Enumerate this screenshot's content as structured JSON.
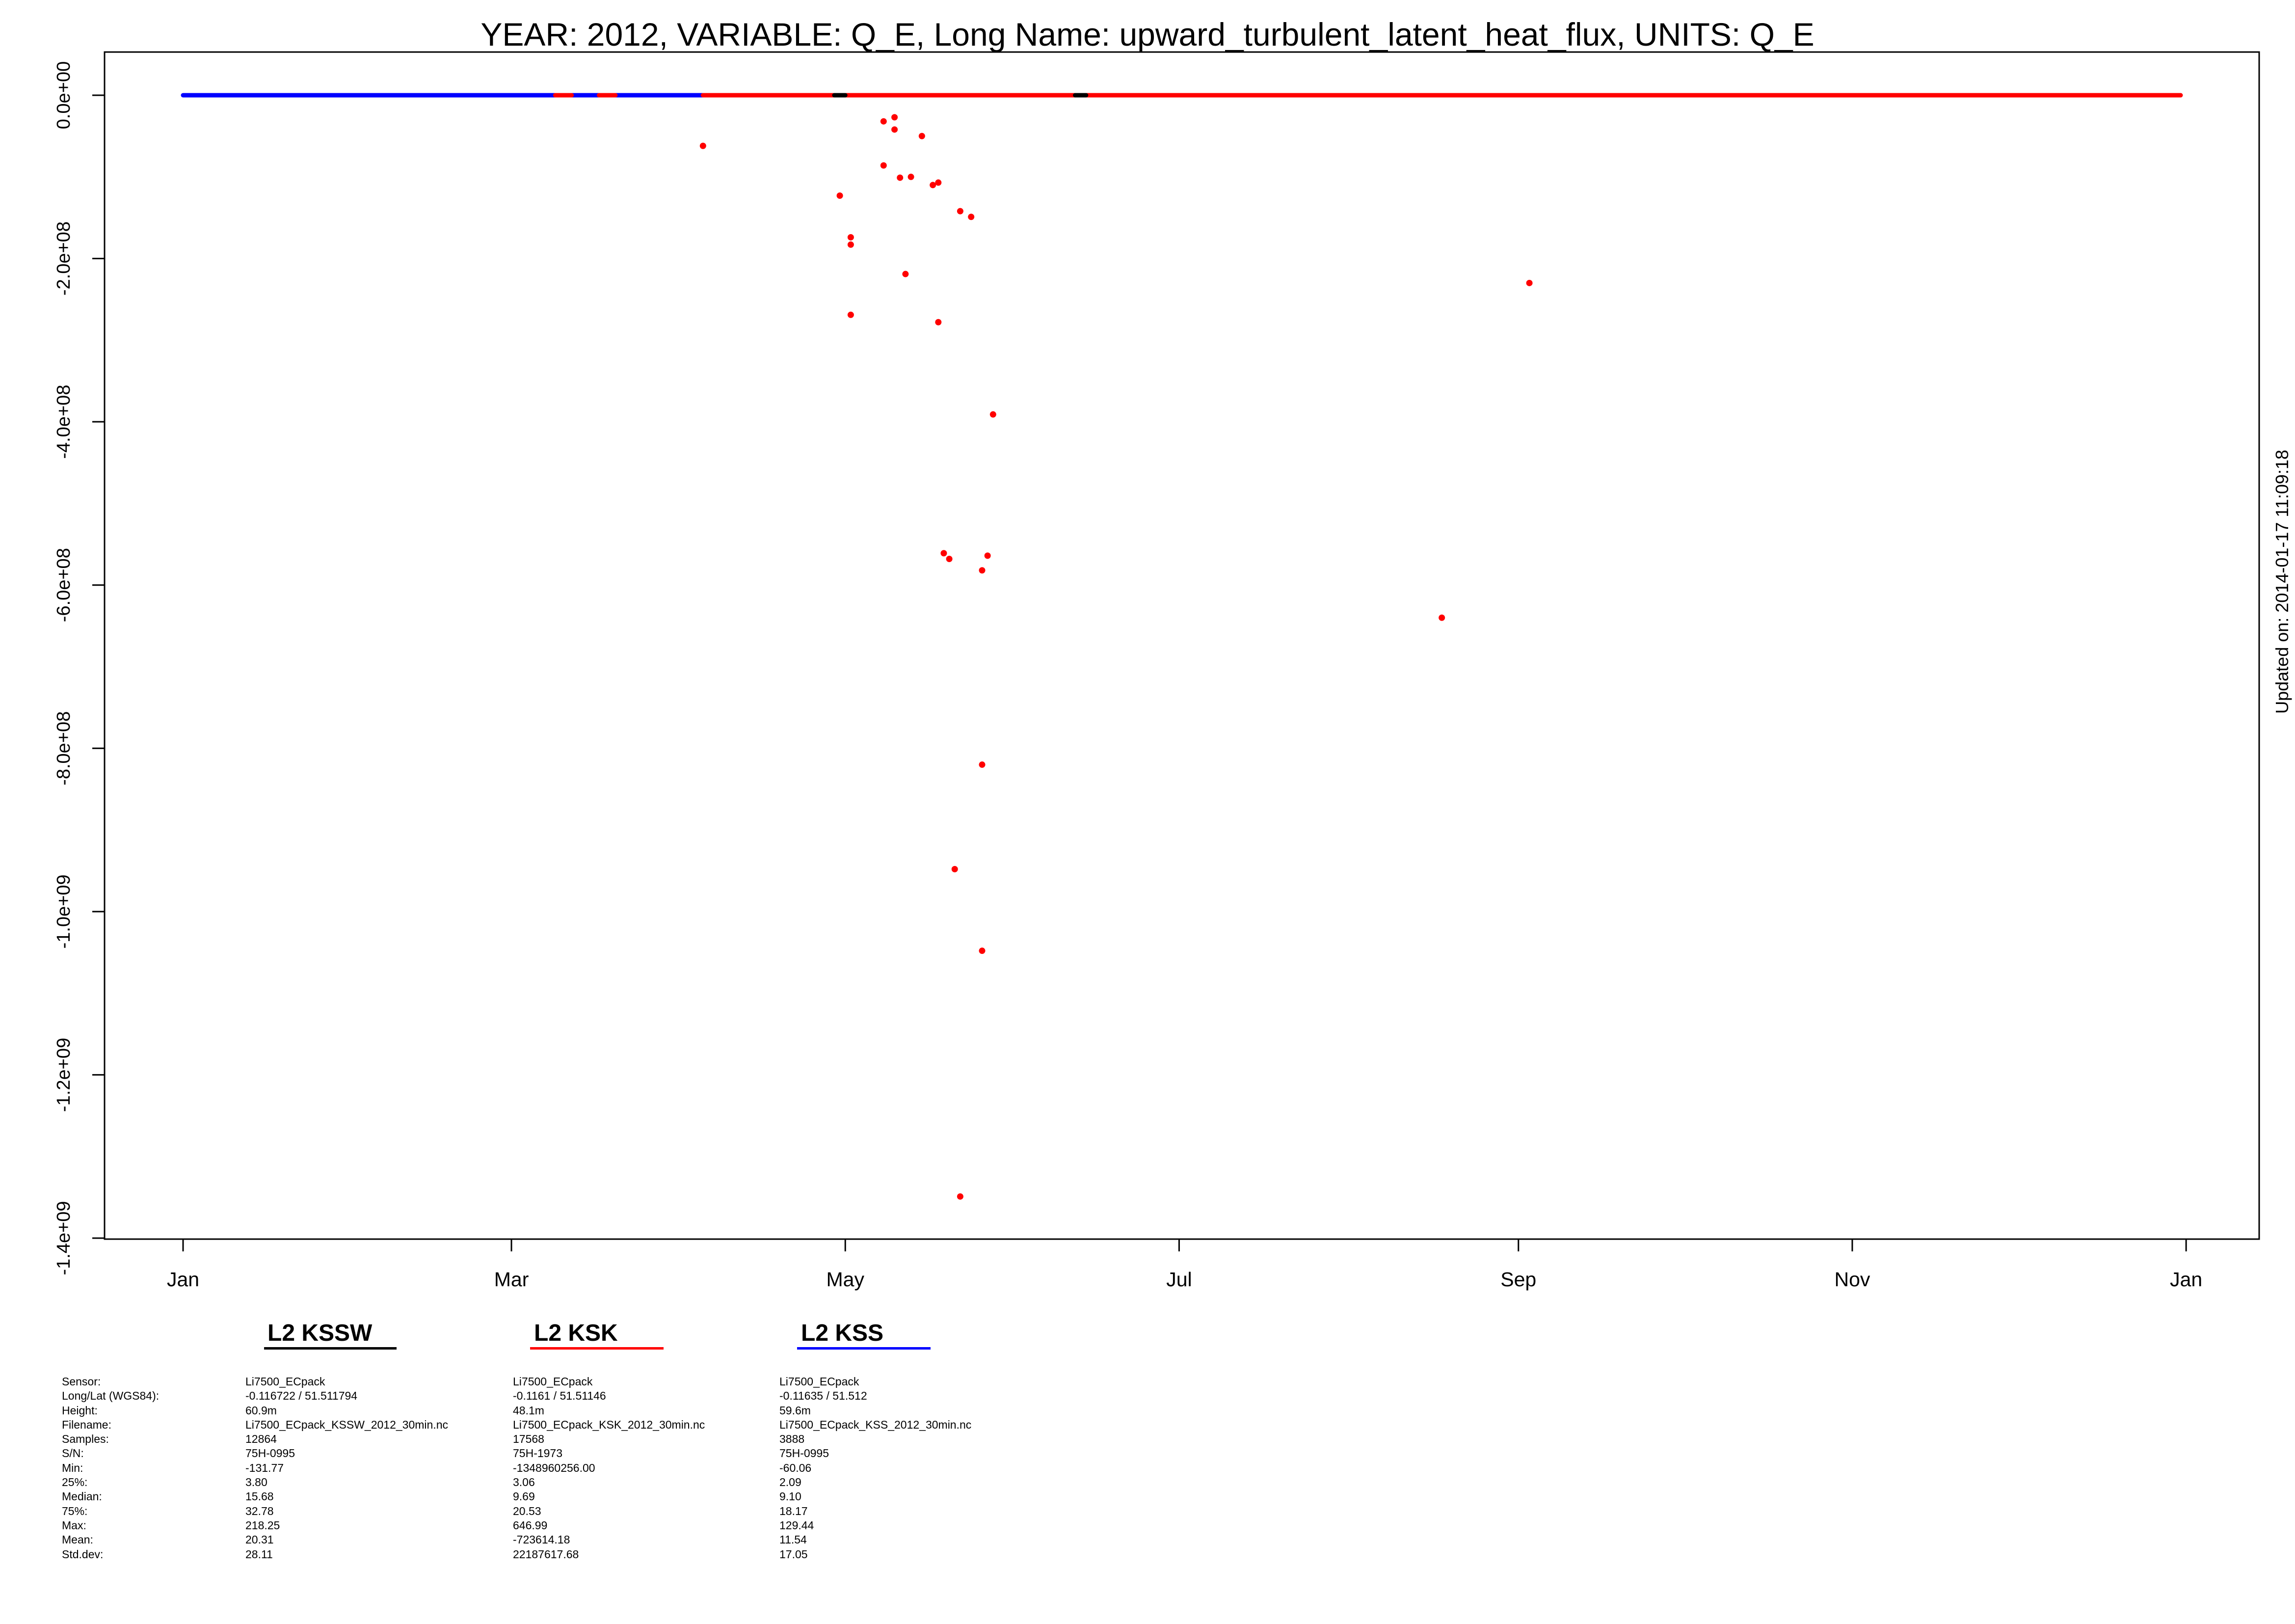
{
  "chart_data": {
    "type": "scatter",
    "title": "YEAR: 2012, VARIABLE: Q_E, Long Name: upward_turbulent_latent_heat_flux, UNITS: Q_E",
    "updated": "Updated on: 2014-01-17 11:09:18",
    "xlabel": "",
    "ylabel": "",
    "x_unit": "days since 2012-01-01",
    "xlim": [
      "2012-01-01",
      "2012-12-31"
    ],
    "ylim": [
      -1400000000,
      0
    ],
    "x_ticks": [
      {
        "date": "2012-01-01",
        "label": "Jan"
      },
      {
        "date": "2012-03-01",
        "label": "Mar"
      },
      {
        "date": "2012-05-01",
        "label": "May"
      },
      {
        "date": "2012-07-01",
        "label": "Jul"
      },
      {
        "date": "2012-09-01",
        "label": "Sep"
      },
      {
        "date": "2012-11-01",
        "label": "Nov"
      },
      {
        "date": "2013-01-01",
        "label": "Jan"
      }
    ],
    "y_ticks": [
      {
        "value": 0,
        "label": "0.0e+00"
      },
      {
        "value": -200000000,
        "label": "-2.0e+08"
      },
      {
        "value": -400000000,
        "label": "-4.0e+08"
      },
      {
        "value": -600000000,
        "label": "-6.0e+08"
      },
      {
        "value": -800000000,
        "label": "-8.0e+08"
      },
      {
        "value": -1000000000,
        "label": "-1.0e+09"
      },
      {
        "value": -1200000000,
        "label": "-1.2e+09"
      },
      {
        "value": -1400000000,
        "label": "-1.4e+09"
      }
    ],
    "grid": false,
    "series": [
      {
        "name": "L2 KSSW",
        "color": "#000000",
        "near_zero_spans": [
          [
            "2012-04-29",
            "2012-05-01"
          ],
          [
            "2012-06-12",
            "2012-06-14"
          ]
        ],
        "points": []
      },
      {
        "name": "L2 KSK",
        "color": "#ff0000",
        "near_zero_spans": [
          [
            "2012-03-09",
            "2012-03-12"
          ],
          [
            "2012-03-17",
            "2012-03-20"
          ],
          [
            "2012-04-05",
            "2012-04-29"
          ],
          [
            "2012-05-01",
            "2012-06-12"
          ],
          [
            "2012-06-14",
            "2012-12-31"
          ]
        ],
        "points": [
          {
            "x": "2012-04-05",
            "y": -62000000
          },
          {
            "x": "2012-05-08",
            "y": -32000000
          },
          {
            "x": "2012-05-10",
            "y": -27000000
          },
          {
            "x": "2012-05-10",
            "y": -42000000
          },
          {
            "x": "2012-05-08",
            "y": -86000000
          },
          {
            "x": "2012-05-11",
            "y": -101000000
          },
          {
            "x": "2012-05-15",
            "y": -50000000
          },
          {
            "x": "2012-05-13",
            "y": -100000000
          },
          {
            "x": "2012-05-17",
            "y": -110000000
          },
          {
            "x": "2012-05-18",
            "y": -107000000
          },
          {
            "x": "2012-04-30",
            "y": -123000000
          },
          {
            "x": "2012-05-02",
            "y": -174000000
          },
          {
            "x": "2012-05-02",
            "y": -183000000
          },
          {
            "x": "2012-05-12",
            "y": -219000000
          },
          {
            "x": "2012-05-02",
            "y": -269000000
          },
          {
            "x": "2012-05-22",
            "y": -142000000
          },
          {
            "x": "2012-05-24",
            "y": -149000000
          },
          {
            "x": "2012-05-18",
            "y": -278000000
          },
          {
            "x": "2012-05-28",
            "y": -391000000
          },
          {
            "x": "2012-05-19",
            "y": -561000000
          },
          {
            "x": "2012-05-20",
            "y": -568000000
          },
          {
            "x": "2012-05-27",
            "y": -564000000
          },
          {
            "x": "2012-05-26",
            "y": -582000000
          },
          {
            "x": "2012-05-26",
            "y": -820000000
          },
          {
            "x": "2012-05-21",
            "y": -948000000
          },
          {
            "x": "2012-05-26",
            "y": -1048000000
          },
          {
            "x": "2012-05-22",
            "y": -1349000000
          },
          {
            "x": "2012-08-18",
            "y": -640000000
          },
          {
            "x": "2012-09-03",
            "y": -230000000
          }
        ]
      },
      {
        "name": "L2 KSS",
        "color": "#0000ff",
        "near_zero_spans": [
          [
            "2012-01-01",
            "2012-03-09"
          ],
          [
            "2012-03-12",
            "2012-03-17"
          ],
          [
            "2012-03-20",
            "2012-04-05"
          ]
        ],
        "points": []
      }
    ],
    "legend": {
      "placement": "bottom",
      "items": [
        {
          "name": "L2 KSSW",
          "color": "#000000"
        },
        {
          "name": "L2 KSK",
          "color": "#ff0000"
        },
        {
          "name": "L2 KSS",
          "color": "#0000ff"
        }
      ]
    }
  },
  "info_table": {
    "row_labels": [
      "Sensor:",
      "Long/Lat (WGS84):",
      "Height:",
      "Filename:",
      "Samples:",
      "S/N:",
      "Min:",
      "25%:",
      "Median:",
      "75%:",
      "Max:",
      "Mean:",
      "Std.dev:"
    ],
    "columns": [
      {
        "values": [
          "Li7500_ECpack",
          " -0.116722 / 51.511794",
          "60.9m",
          "Li7500_ECpack_KSSW_2012_30min.nc",
          "12864",
          "75H-0995",
          "-131.77",
          "3.80",
          "15.68",
          "32.78",
          "218.25",
          "20.31",
          "28.11"
        ]
      },
      {
        "values": [
          "Li7500_ECpack",
          " -0.1161 / 51.51146",
          "48.1m",
          "Li7500_ECpack_KSK_2012_30min.nc",
          "17568",
          "75H-1973",
          "-1348960256.00",
          "3.06",
          "9.69",
          "20.53",
          "646.99",
          "-723614.18",
          "22187617.68"
        ]
      },
      {
        "values": [
          "Li7500_ECpack",
          " -0.11635 / 51.512",
          "59.6m",
          "Li7500_ECpack_KSS_2012_30min.nc",
          "3888",
          "75H-0995",
          "-60.06",
          "2.09",
          "9.10",
          "18.17",
          "129.44",
          "11.54",
          "17.05"
        ]
      }
    ]
  }
}
